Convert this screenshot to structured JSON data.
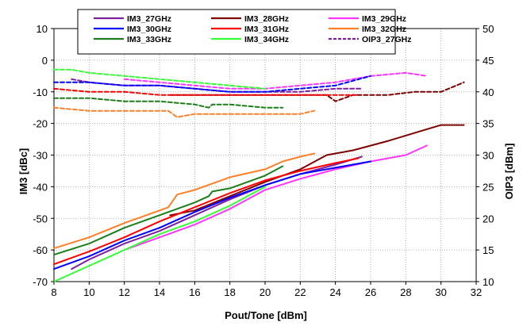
{
  "chart_data": {
    "type": "line",
    "title": "",
    "xlabel": "Pout/Tone [dBm]",
    "ylabel_left": "IM3 [dBc]",
    "ylabel_right": "OIP3 [dBm]",
    "xlim": [
      8,
      32
    ],
    "ylim_left": [
      -70,
      10
    ],
    "ylim_right": [
      10,
      50
    ],
    "x_ticks": [
      8,
      10,
      12,
      14,
      16,
      18,
      20,
      22,
      24,
      26,
      28,
      30,
      32
    ],
    "y_left_ticks": [
      10,
      0,
      -10,
      -20,
      -30,
      -40,
      -50,
      -60,
      -70
    ],
    "y_right_ticks": [
      50,
      45,
      40,
      35,
      30,
      25,
      20,
      15,
      10
    ],
    "grid": "both",
    "legend_placement": "top",
    "series": [
      {
        "name": "IM3_27GHz",
        "axis": "left",
        "style": "solid",
        "color": "#7f1f9f",
        "points": [
          [
            9,
            -66
          ],
          [
            10,
            -63
          ],
          [
            12,
            -58
          ],
          [
            14,
            -54
          ],
          [
            16,
            -49
          ],
          [
            18,
            -44
          ],
          [
            20,
            -39.5
          ],
          [
            22,
            -36
          ],
          [
            24,
            -33
          ],
          [
            25.5,
            -30.5
          ]
        ]
      },
      {
        "name": "IM3_28GHz",
        "axis": "left",
        "style": "solid",
        "color": "#7f0000",
        "points": [
          [
            14.6,
            -49
          ],
          [
            16,
            -47.5
          ],
          [
            18,
            -43
          ],
          [
            20,
            -38.5
          ],
          [
            22,
            -34.5
          ],
          [
            23.5,
            -30
          ],
          [
            25,
            -28.5
          ],
          [
            27,
            -25.5
          ],
          [
            28.5,
            -23
          ],
          [
            30,
            -20.5
          ],
          [
            31.3,
            -20.5
          ]
        ]
      },
      {
        "name": "IM3_29GHz",
        "axis": "left",
        "style": "solid",
        "color": "#ff33ff",
        "points": [
          [
            12,
            -60
          ],
          [
            14,
            -56
          ],
          [
            16,
            -52
          ],
          [
            18,
            -47
          ],
          [
            20,
            -41
          ],
          [
            22,
            -37.5
          ],
          [
            24,
            -34.5
          ],
          [
            26,
            -32
          ],
          [
            28,
            -30
          ],
          [
            29.2,
            -27
          ]
        ]
      },
      {
        "name": "IM3_30GHz",
        "axis": "left",
        "style": "solid",
        "color": "#0000ff",
        "points": [
          [
            8,
            -66
          ],
          [
            10,
            -62
          ],
          [
            12,
            -57
          ],
          [
            14,
            -53
          ],
          [
            16,
            -48
          ],
          [
            18,
            -43.5
          ],
          [
            20,
            -39.5
          ],
          [
            22,
            -36
          ],
          [
            24,
            -34
          ],
          [
            26,
            -32
          ]
        ]
      },
      {
        "name": "IM3_31GHz",
        "axis": "left",
        "style": "solid",
        "color": "#ff0000",
        "points": [
          [
            8,
            -64.5
          ],
          [
            10,
            -60.5
          ],
          [
            12,
            -56
          ],
          [
            14,
            -51
          ],
          [
            16,
            -46.5
          ],
          [
            18,
            -42
          ],
          [
            20,
            -38
          ],
          [
            22,
            -35
          ],
          [
            24,
            -32.5
          ],
          [
            25.3,
            -31
          ]
        ]
      },
      {
        "name": "IM3_32GHz",
        "axis": "left",
        "style": "solid",
        "color": "#ff7f27",
        "points": [
          [
            8,
            -59.5
          ],
          [
            10,
            -56
          ],
          [
            12,
            -51.5
          ],
          [
            14,
            -47.5
          ],
          [
            14.5,
            -46.5
          ],
          [
            15,
            -42.5
          ],
          [
            16,
            -41
          ],
          [
            18,
            -37
          ],
          [
            20,
            -34.5
          ],
          [
            21,
            -32
          ],
          [
            22,
            -30.5
          ],
          [
            22.8,
            -29.5
          ]
        ]
      },
      {
        "name": "IM3_33GHz",
        "axis": "left",
        "style": "solid",
        "color": "#1a7f1a",
        "points": [
          [
            8,
            -61.5
          ],
          [
            10,
            -58
          ],
          [
            12,
            -53
          ],
          [
            14,
            -49
          ],
          [
            16,
            -45
          ],
          [
            16.8,
            -43
          ],
          [
            17,
            -41.5
          ],
          [
            18,
            -40.5
          ],
          [
            20,
            -36.5
          ],
          [
            21,
            -33.5
          ]
        ]
      },
      {
        "name": "IM3_34GHz",
        "axis": "left",
        "style": "solid",
        "color": "#33ff33",
        "points": [
          [
            8,
            -70
          ],
          [
            10,
            -65
          ],
          [
            12,
            -60
          ],
          [
            14,
            -55
          ],
          [
            16,
            -51
          ],
          [
            18,
            -46
          ],
          [
            20,
            -40
          ]
        ]
      },
      {
        "name": "OIP3_27GHz",
        "axis": "right",
        "style": "dashed",
        "color": "#7f1f9f",
        "points": [
          [
            9,
            42
          ],
          [
            10,
            41.5
          ],
          [
            12,
            41
          ],
          [
            14,
            41
          ],
          [
            16,
            40.5
          ],
          [
            18,
            40
          ],
          [
            20,
            40
          ],
          [
            22,
            40
          ],
          [
            24,
            40.5
          ],
          [
            25.5,
            40.5
          ]
        ]
      },
      {
        "name": "OIP3_28GHz",
        "axis": "right",
        "style": "dashed",
        "color": "#7f0000",
        "points": [
          [
            14.6,
            39.5
          ],
          [
            16,
            39.5
          ],
          [
            18,
            39.5
          ],
          [
            20,
            39.5
          ],
          [
            22,
            39.5
          ],
          [
            23.5,
            39.5
          ],
          [
            24,
            38.5
          ],
          [
            25,
            39.5
          ],
          [
            27,
            39.5
          ],
          [
            28.5,
            40
          ],
          [
            30,
            40
          ],
          [
            31.3,
            41.5
          ]
        ]
      },
      {
        "name": "OIP3_29GHz",
        "axis": "right",
        "style": "dashed",
        "color": "#ff33ff",
        "points": [
          [
            12,
            42
          ],
          [
            14,
            41.5
          ],
          [
            16,
            41
          ],
          [
            18,
            40.5
          ],
          [
            20,
            40.5
          ],
          [
            22,
            41
          ],
          [
            24,
            41.5
          ],
          [
            26,
            42.5
          ],
          [
            28,
            43
          ],
          [
            29.2,
            42.5
          ]
        ]
      },
      {
        "name": "OIP3_30GHz",
        "axis": "right",
        "style": "dashed",
        "color": "#0000ff",
        "points": [
          [
            8,
            41.5
          ],
          [
            10,
            41.5
          ],
          [
            12,
            41
          ],
          [
            14,
            41
          ],
          [
            16,
            40.5
          ],
          [
            18,
            40
          ],
          [
            20,
            40
          ],
          [
            22,
            40.5
          ],
          [
            24,
            41
          ],
          [
            26,
            42.5
          ]
        ]
      },
      {
        "name": "OIP3_31GHz",
        "axis": "right",
        "style": "dashed",
        "color": "#ff0000",
        "points": [
          [
            8,
            40.5
          ],
          [
            10,
            40
          ],
          [
            12,
            40
          ],
          [
            14,
            39.5
          ],
          [
            16,
            39.5
          ],
          [
            18,
            39.5
          ],
          [
            20,
            39.5
          ],
          [
            22,
            39.5
          ],
          [
            24,
            39.5
          ],
          [
            25.3,
            39.5
          ]
        ]
      },
      {
        "name": "OIP3_32GHz",
        "axis": "right",
        "style": "dashed",
        "color": "#ff7f27",
        "points": [
          [
            8,
            37.5
          ],
          [
            10,
            37
          ],
          [
            12,
            37
          ],
          [
            14,
            37
          ],
          [
            14.5,
            37
          ],
          [
            15,
            36
          ],
          [
            16,
            36.5
          ],
          [
            18,
            36.5
          ],
          [
            20,
            36.5
          ],
          [
            21,
            36.5
          ],
          [
            22,
            36.5
          ],
          [
            22.8,
            37
          ]
        ]
      },
      {
        "name": "OIP3_33GHz",
        "axis": "right",
        "style": "dashed",
        "color": "#1a7f1a",
        "points": [
          [
            8,
            39
          ],
          [
            10,
            39
          ],
          [
            12,
            38.5
          ],
          [
            14,
            38.5
          ],
          [
            16,
            38
          ],
          [
            16.8,
            37.5
          ],
          [
            17,
            38
          ],
          [
            18,
            38
          ],
          [
            20,
            37.5
          ],
          [
            21,
            37.5
          ]
        ]
      },
      {
        "name": "OIP3_34GHz",
        "axis": "right",
        "style": "dashed",
        "color": "#33ff33",
        "points": [
          [
            8,
            43.5
          ],
          [
            9,
            43.5
          ],
          [
            10,
            43
          ],
          [
            12,
            42.5
          ],
          [
            14,
            42
          ],
          [
            16,
            41.5
          ],
          [
            18,
            41
          ],
          [
            20,
            40.5
          ]
        ]
      }
    ],
    "legend": [
      {
        "label": "IM3_27GHz",
        "color": "#7f1f9f",
        "style": "solid"
      },
      {
        "label": "IM3_28GHz",
        "color": "#7f0000",
        "style": "solid"
      },
      {
        "label": "IM3_29GHz",
        "color": "#ff33ff",
        "style": "solid"
      },
      {
        "label": "IM3_30GHz",
        "color": "#0000ff",
        "style": "solid"
      },
      {
        "label": "IM3_31GHz",
        "color": "#ff0000",
        "style": "solid"
      },
      {
        "label": "IM3_32GHz",
        "color": "#ff7f27",
        "style": "solid"
      },
      {
        "label": "IM3_33GHz",
        "color": "#1a7f1a",
        "style": "solid"
      },
      {
        "label": "IM3_34GHz",
        "color": "#33ff33",
        "style": "solid"
      },
      {
        "label": "OIP3_27GHz",
        "color": "#7f1f9f",
        "style": "dashed"
      }
    ]
  }
}
